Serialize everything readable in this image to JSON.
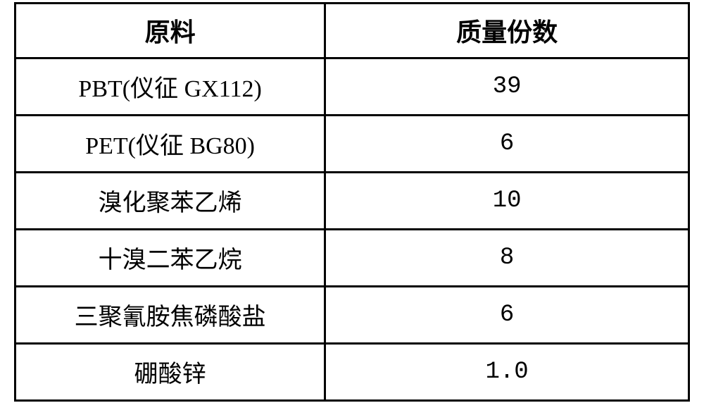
{
  "table": {
    "columns": [
      {
        "label": "原料"
      },
      {
        "label": "质量份数"
      }
    ],
    "rows": [
      [
        "PBT(仪征 GX112)",
        "39"
      ],
      [
        "PET(仪征 BG80)",
        "6"
      ],
      [
        "溴化聚苯乙烯",
        "10"
      ],
      [
        "十溴二苯乙烷",
        "8"
      ],
      [
        "三聚氰胺焦磷酸盐",
        "6"
      ],
      [
        "硼酸锌",
        "1.0"
      ]
    ],
    "border_color": "#000000",
    "background_color": "#ffffff",
    "header_fontsize": 36,
    "cell_fontsize": 34,
    "border_width": 3
  }
}
